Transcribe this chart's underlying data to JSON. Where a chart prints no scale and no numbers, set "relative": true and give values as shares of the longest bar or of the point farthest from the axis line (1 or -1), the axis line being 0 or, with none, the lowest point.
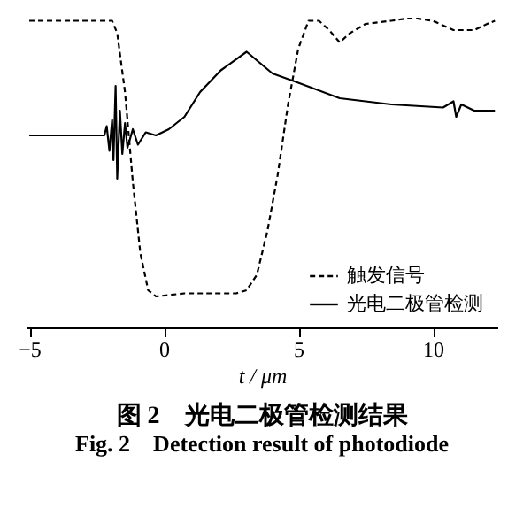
{
  "chart_data": {
    "type": "line",
    "title": "图 2　光电二极管检测结果",
    "subtitle": "Fig. 2　Detection result of photodiode",
    "xlabel": "t / μm",
    "xlim": [
      -5.1,
      12.4
    ],
    "xticks": [
      -5,
      0,
      5,
      10
    ],
    "relative": true,
    "legend": "bottom right",
    "series": [
      {
        "name": "触发信号",
        "color": "#000000",
        "line_style": "dashed",
        "x": [
          -5,
          -1.92,
          -1.73,
          -1.44,
          -1.15,
          -0.87,
          -0.58,
          -0.29,
          0.77,
          2.69,
          3.08,
          3.46,
          3.85,
          4.23,
          4.62,
          5.0,
          5.38,
          5.77,
          6.15,
          6.54,
          6.92,
          7.5,
          8.46,
          9.23,
          10.0,
          10.77,
          11.54,
          12.02,
          12.31
        ],
        "values": [
          0.99,
          0.99,
          0.95,
          0.76,
          0.47,
          0.24,
          0.12,
          0.1,
          0.11,
          0.11,
          0.12,
          0.17,
          0.31,
          0.49,
          0.72,
          0.9,
          0.99,
          0.99,
          0.96,
          0.92,
          0.95,
          0.98,
          0.99,
          1.0,
          0.99,
          0.96,
          0.96,
          0.98,
          0.99
        ]
      },
      {
        "name": "光电二极管检测",
        "color": "#000000",
        "line_style": "solid",
        "x": [
          -5,
          -2.21,
          -2.12,
          -2.02,
          -1.92,
          -1.87,
          -1.79,
          -1.73,
          -1.63,
          -1.54,
          -1.44,
          -1.35,
          -1.15,
          -0.96,
          -0.67,
          -0.29,
          0.19,
          0.77,
          1.35,
          2.12,
          3.08,
          4.04,
          5.0,
          6.54,
          8.46,
          10.38,
          10.77,
          10.87,
          11.06,
          11.54,
          12.31
        ],
        "values": [
          0.62,
          0.62,
          0.65,
          0.57,
          0.67,
          0.54,
          0.78,
          0.48,
          0.7,
          0.56,
          0.66,
          0.58,
          0.64,
          0.59,
          0.63,
          0.62,
          0.64,
          0.68,
          0.76,
          0.83,
          0.89,
          0.82,
          0.79,
          0.74,
          0.72,
          0.71,
          0.73,
          0.68,
          0.72,
          0.7,
          0.7
        ]
      }
    ]
  }
}
